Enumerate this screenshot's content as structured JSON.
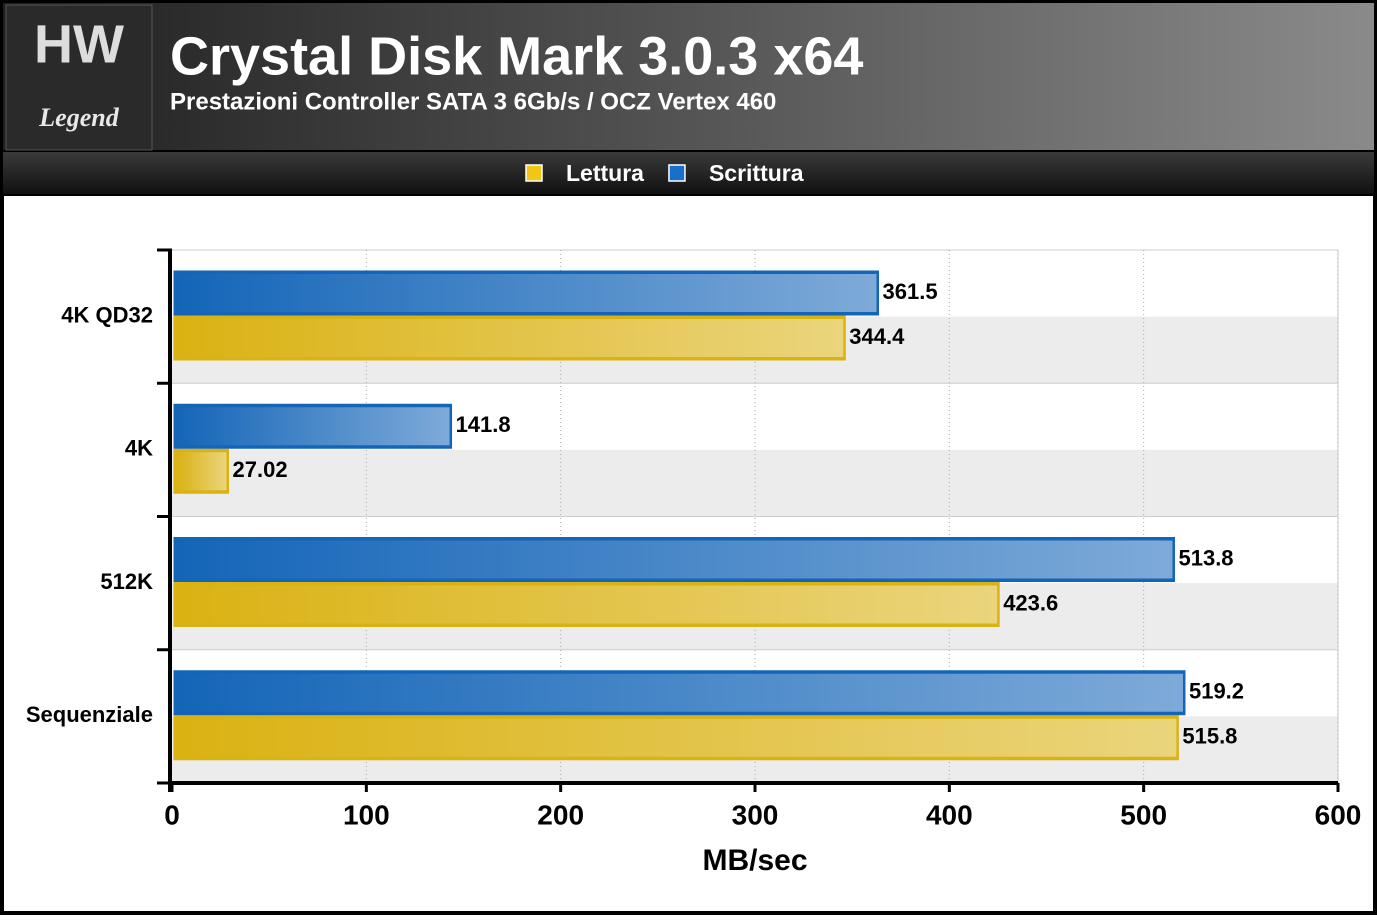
{
  "brand": {
    "mark": "HW",
    "name": "Legend"
  },
  "chart_data": {
    "type": "hbar",
    "title": "Crystal Disk Mark 3.0.3 x64",
    "subtitle": "Prestazioni Controller SATA 3 6Gb/s / OCZ Vertex 460",
    "categories": [
      "4K QD32",
      "4K",
      "512K",
      "Sequenziale"
    ],
    "series": [
      {
        "name": "Lettura",
        "color": "#f2c614",
        "values": [
          344.4,
          27.02,
          423.6,
          515.8
        ]
      },
      {
        "name": "Scrittura",
        "color": "#1670cc",
        "values": [
          361.5,
          141.8,
          513.8,
          519.2
        ]
      }
    ],
    "x_label": "MB/sec",
    "xlim": [
      0,
      600
    ],
    "xticks": [
      0,
      100,
      200,
      300,
      400,
      500,
      600
    ],
    "grid": true,
    "legend": "top"
  }
}
